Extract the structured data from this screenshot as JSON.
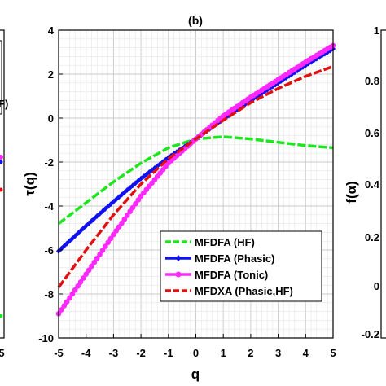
{
  "chart_data": {
    "type": "line",
    "title": "(b)",
    "xlabel": "q",
    "ylabel": "τ(q)",
    "xlim": [
      -5,
      5
    ],
    "ylim": [
      -10,
      4
    ],
    "x_ticks": [
      "-5",
      "-4",
      "-3",
      "-2",
      "-1",
      "0",
      "1",
      "2",
      "3",
      "4",
      "5"
    ],
    "y_ticks": [
      "-10",
      "-8",
      "-6",
      "-4",
      "-2",
      "0",
      "2",
      "4"
    ],
    "grid": true,
    "legend_position": "bottom-right",
    "x": [
      -5,
      -4,
      -3,
      -2,
      -1,
      0,
      1,
      2,
      3,
      4,
      5
    ],
    "series": [
      {
        "name": "MFDFA (HF)",
        "color": "#1ee61e",
        "marker": "none",
        "dash": true,
        "values": [
          -4.8,
          -3.85,
          -2.9,
          -2.05,
          -1.35,
          -0.95,
          -0.85,
          -0.95,
          -1.1,
          -1.25,
          -1.35
        ]
      },
      {
        "name": "MFDFA (Phasic)",
        "color": "#1010f0",
        "marker": "diamond",
        "dash": false,
        "values": [
          -6.05,
          -4.9,
          -3.8,
          -2.75,
          -1.8,
          -0.95,
          -0.05,
          0.8,
          1.6,
          2.4,
          3.15
        ]
      },
      {
        "name": "MFDFA (Tonic)",
        "color": "#ff28ff",
        "marker": "circle",
        "dash": false,
        "values": [
          -8.9,
          -7.1,
          -5.3,
          -3.55,
          -2.05,
          -0.95,
          0.1,
          0.95,
          1.75,
          2.55,
          3.3
        ]
      },
      {
        "name": "MFDXA (Phasic,HF)",
        "color": "#e01010",
        "marker": "none",
        "dash": true,
        "values": [
          -7.7,
          -6.0,
          -4.4,
          -3.0,
          -1.85,
          -0.95,
          -0.1,
          0.7,
          1.35,
          1.9,
          2.35
        ]
      }
    ]
  },
  "left_panel": {
    "y_ticks": [
      "",
      "",
      "",
      "",
      "",
      "",
      "",
      ""
    ],
    "x_tick": "5",
    "legend_fragment": "F)"
  },
  "right_panel": {
    "ylabel": "f(α)",
    "y_ticks": [
      "-0.2",
      "0",
      "0.2",
      "0.4",
      "0.6",
      "0.8",
      "1"
    ]
  }
}
